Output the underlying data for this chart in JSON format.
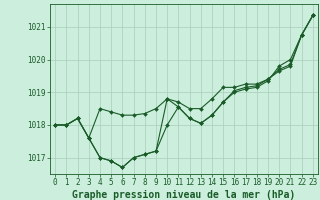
{
  "background_color": "#cceedd",
  "line_color": "#1a5c28",
  "grid_color": "#aaccbb",
  "title": "Graphe pression niveau de la mer (hPa)",
  "title_fontsize": 7.0,
  "ylim": [
    1016.5,
    1021.7
  ],
  "xlim": [
    -0.5,
    23.5
  ],
  "yticks": [
    1017,
    1018,
    1019,
    1020,
    1021
  ],
  "xticks": [
    0,
    1,
    2,
    3,
    4,
    5,
    6,
    7,
    8,
    9,
    10,
    11,
    12,
    13,
    14,
    15,
    16,
    17,
    18,
    19,
    20,
    21,
    22,
    23
  ],
  "series": [
    [
      1018.0,
      1018.0,
      1018.2,
      1017.6,
      1017.0,
      1016.9,
      1016.7,
      1017.0,
      1017.1,
      1017.2,
      1018.0,
      1018.55,
      1018.2,
      1018.05,
      1018.3,
      1018.7,
      1019.0,
      1019.1,
      1019.15,
      1019.35,
      1019.8,
      1020.0,
      1020.75,
      1021.35
    ],
    [
      1018.0,
      1018.0,
      1018.2,
      1017.6,
      1017.0,
      1016.9,
      1016.7,
      1017.0,
      1017.1,
      1017.2,
      1018.8,
      1018.55,
      1018.2,
      1018.05,
      1018.3,
      1018.7,
      1019.05,
      1019.15,
      1019.2,
      1019.4,
      1019.65,
      1019.8,
      1020.75,
      1021.35
    ],
    [
      1018.0,
      1018.0,
      1018.2,
      1017.6,
      1018.5,
      1018.4,
      1018.3,
      1018.3,
      1018.35,
      1018.5,
      1018.8,
      1018.7,
      1018.5,
      1018.5,
      1018.8,
      1019.15,
      1019.15,
      1019.25,
      1019.25,
      1019.4,
      1019.7,
      1019.85,
      1020.75,
      1021.35
    ]
  ],
  "marker": "D",
  "markersize": 2.0,
  "linewidth": 0.8,
  "tick_fontsize": 5.5
}
